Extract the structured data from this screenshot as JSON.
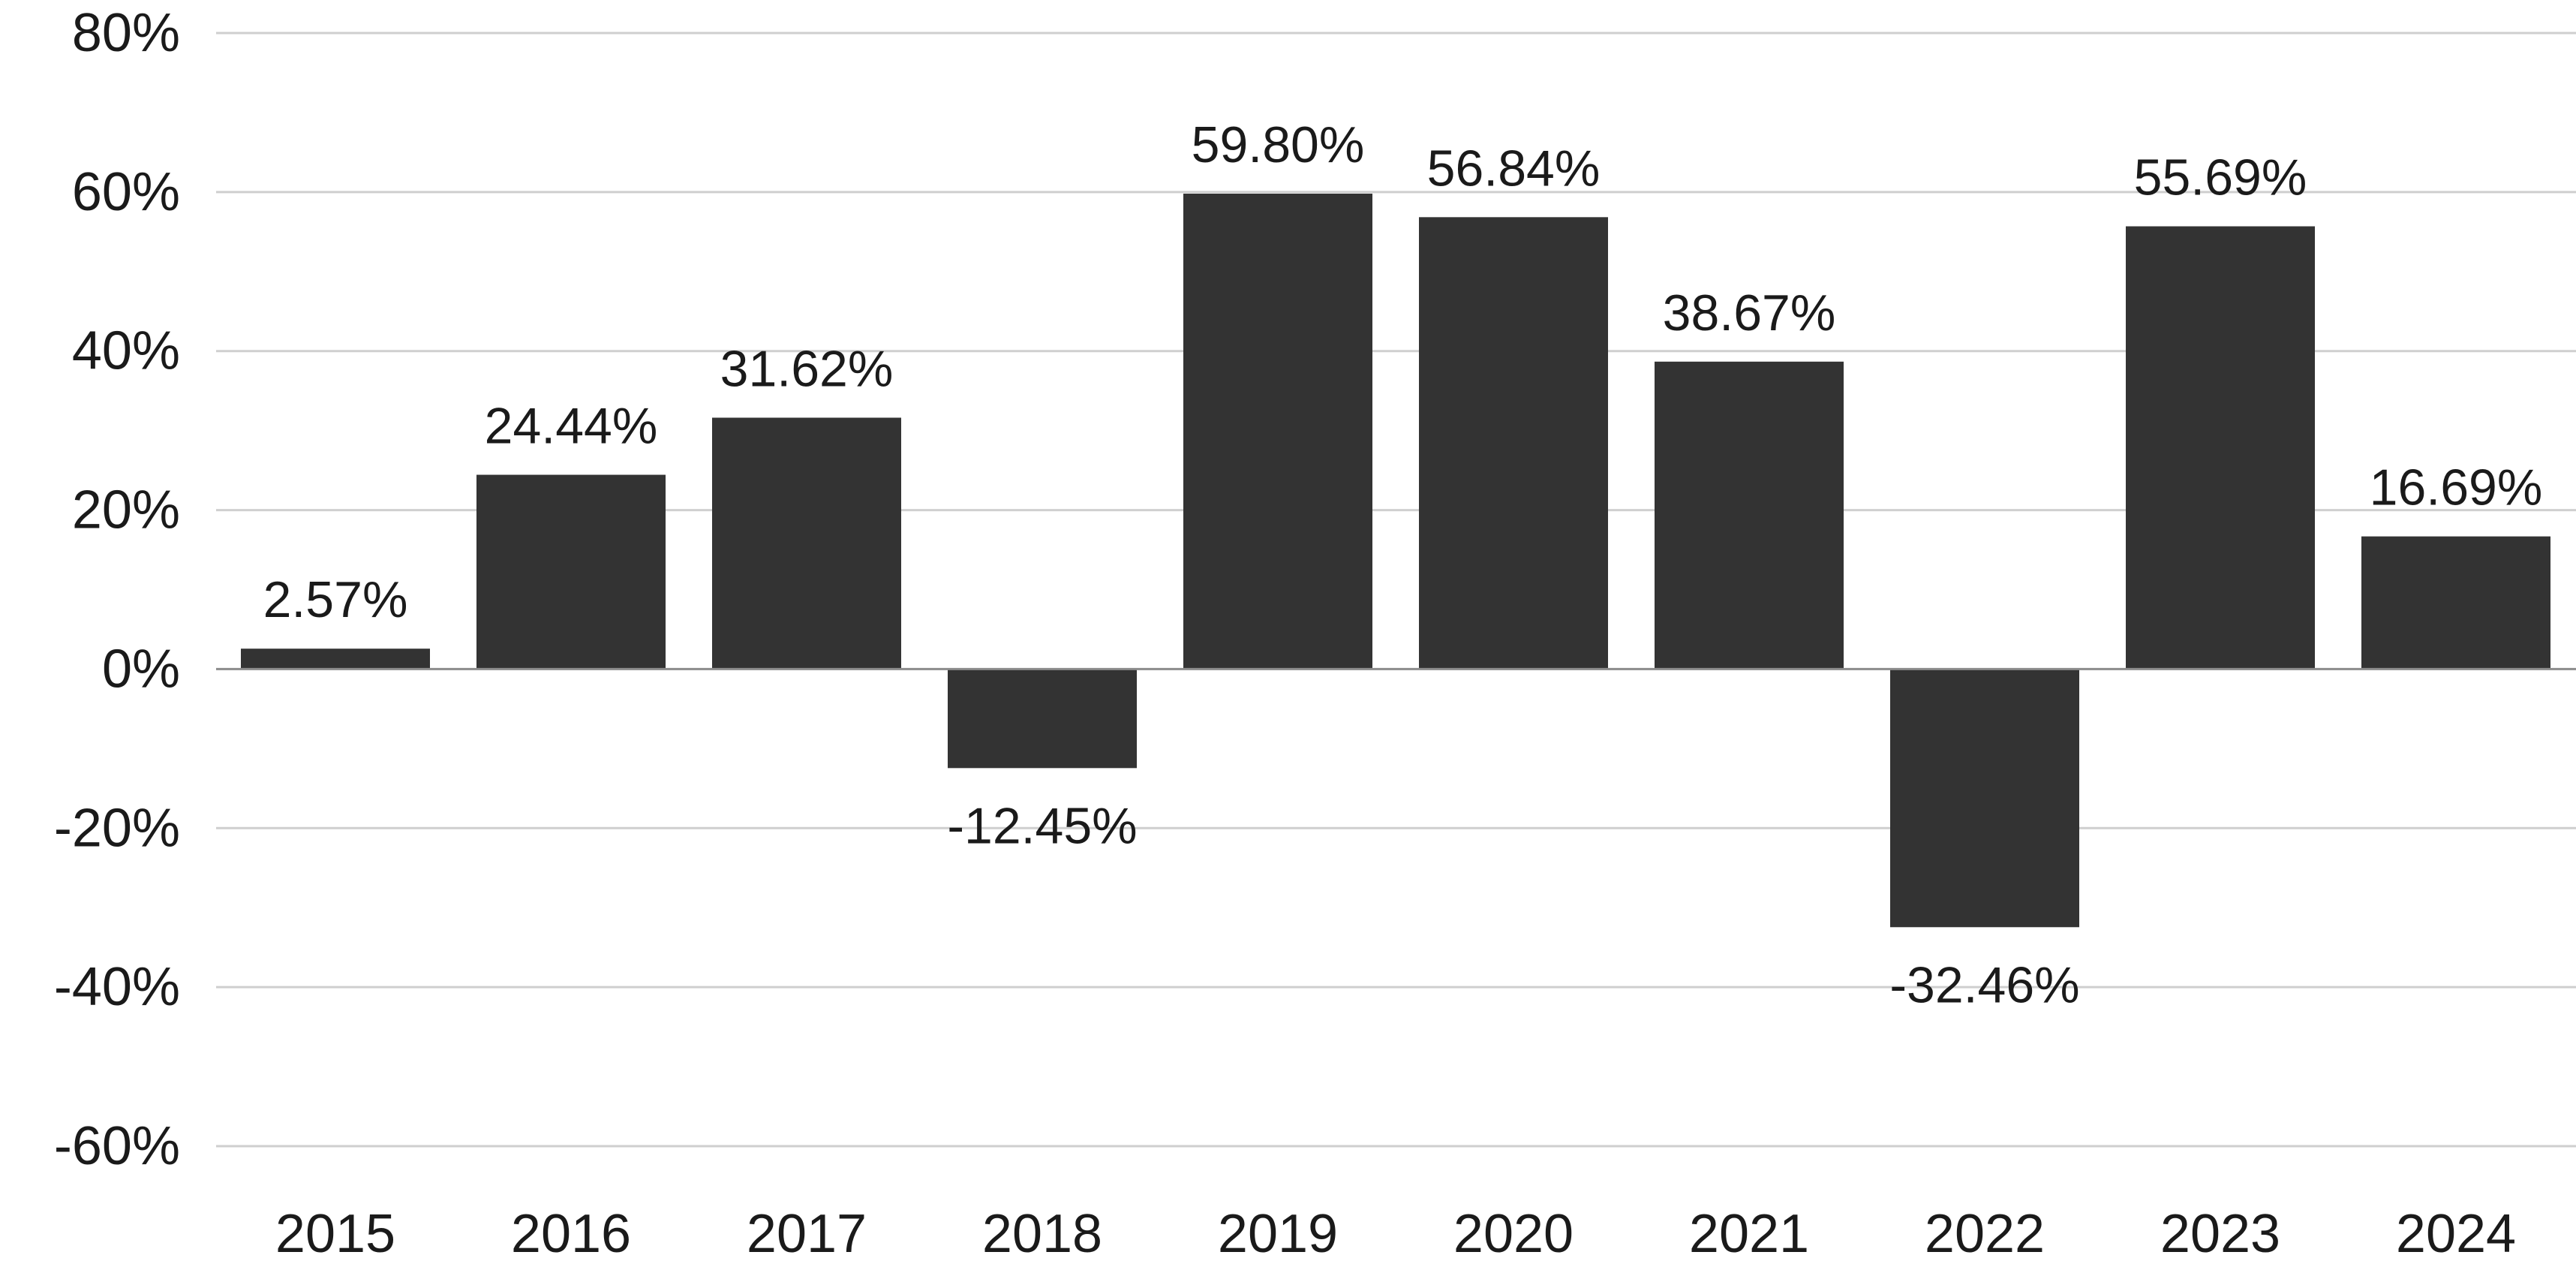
{
  "chart_data": {
    "type": "bar",
    "title": "",
    "xlabel": "",
    "ylabel": "",
    "categories": [
      "2015",
      "2016",
      "2017",
      "2018",
      "2019",
      "2020",
      "2021",
      "2022",
      "2023",
      "2024"
    ],
    "values": [
      2.57,
      24.44,
      31.62,
      -12.45,
      59.8,
      56.84,
      38.67,
      -32.46,
      55.69,
      16.69
    ],
    "value_labels": [
      "2.57%",
      "24.44%",
      "31.62%",
      "-12.45%",
      "59.80%",
      "56.84%",
      "38.67%",
      "-32.46%",
      "55.69%",
      "16.69%"
    ],
    "ylim": [
      -60,
      80
    ],
    "yticks": [
      80,
      60,
      40,
      20,
      0,
      -20,
      -40,
      -60
    ],
    "ytick_labels": [
      "80%",
      "60%",
      "40%",
      "20%",
      "0%",
      "-20%",
      "-40%",
      "-60%"
    ],
    "grid": true,
    "legend": "none",
    "bar_color": "#333333"
  }
}
